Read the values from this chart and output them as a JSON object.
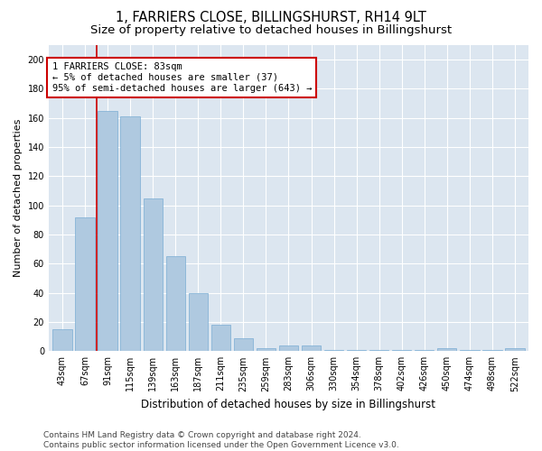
{
  "title": "1, FARRIERS CLOSE, BILLINGSHURST, RH14 9LT",
  "subtitle": "Size of property relative to detached houses in Billingshurst",
  "xlabel": "Distribution of detached houses by size in Billingshurst",
  "ylabel": "Number of detached properties",
  "categories": [
    "43sqm",
    "67sqm",
    "91sqm",
    "115sqm",
    "139sqm",
    "163sqm",
    "187sqm",
    "211sqm",
    "235sqm",
    "259sqm",
    "283sqm",
    "306sqm",
    "330sqm",
    "354sqm",
    "378sqm",
    "402sqm",
    "426sqm",
    "450sqm",
    "474sqm",
    "498sqm",
    "522sqm"
  ],
  "values": [
    15,
    92,
    165,
    161,
    105,
    65,
    40,
    18,
    9,
    2,
    4,
    4,
    1,
    1,
    1,
    1,
    1,
    2,
    1,
    1,
    2
  ],
  "bar_color": "#afc9e0",
  "bar_edge_color": "#7aadd4",
  "vline_x": 1.5,
  "vline_color": "#cc0000",
  "annotation_text": "1 FARRIERS CLOSE: 83sqm\n← 5% of detached houses are smaller (37)\n95% of semi-detached houses are larger (643) →",
  "annotation_box_color": "#cc0000",
  "ylim": [
    0,
    210
  ],
  "yticks": [
    0,
    20,
    40,
    60,
    80,
    100,
    120,
    140,
    160,
    180,
    200
  ],
  "background_color": "#dce6f0",
  "footer_text": "Contains HM Land Registry data © Crown copyright and database right 2024.\nContains public sector information licensed under the Open Government Licence v3.0.",
  "title_fontsize": 10.5,
  "subtitle_fontsize": 9.5,
  "xlabel_fontsize": 8.5,
  "ylabel_fontsize": 8,
  "tick_fontsize": 7,
  "annotation_fontsize": 7.5,
  "footer_fontsize": 6.5
}
